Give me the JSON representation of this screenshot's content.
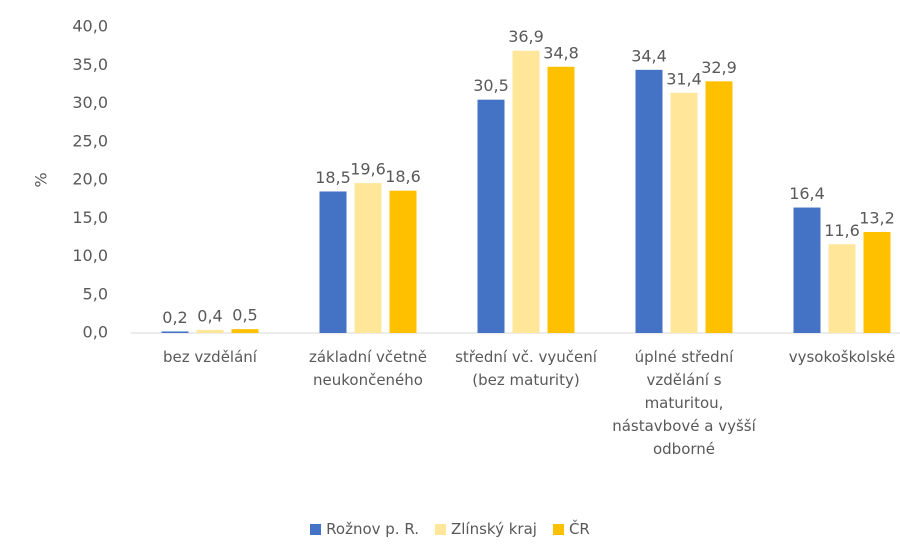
{
  "chart_data": {
    "type": "bar",
    "y_label": "%",
    "categories": [
      "bez vzdělání",
      "základní včetně neukončeného",
      "střední vč. vyučení (bez maturity)",
      "úplné střední vzdělání s maturitou, nástavbové a vyšší odborné",
      "vysokoškolské"
    ],
    "series": [
      {
        "name": "Rožnov p. R.",
        "color": "#4472c4",
        "values": [
          0.2,
          18.5,
          30.5,
          34.4,
          16.4
        ],
        "value_labels": [
          "0,2",
          "18,5",
          "30,5",
          "34,4",
          "16,4"
        ]
      },
      {
        "name": "Zlínský kraj",
        "color": "#ffe699",
        "values": [
          0.4,
          19.6,
          36.9,
          31.4,
          11.6
        ],
        "value_labels": [
          "0,4",
          "19,6",
          "36,9",
          "31,4",
          "11,6"
        ]
      },
      {
        "name": "ČR",
        "color": "#ffc000",
        "values": [
          0.5,
          18.6,
          34.8,
          32.9,
          13.2
        ],
        "value_labels": [
          "0,5",
          "18,6",
          "34,8",
          "32,9",
          "13,2"
        ]
      }
    ],
    "ylim": [
      0,
      40
    ],
    "yticks": [
      {
        "value": 0,
        "label": "0,0"
      },
      {
        "value": 5,
        "label": "5,0"
      },
      {
        "value": 10,
        "label": "10,0"
      },
      {
        "value": 15,
        "label": "15,0"
      },
      {
        "value": 20,
        "label": "20,0"
      },
      {
        "value": 25,
        "label": "25,0"
      },
      {
        "value": 30,
        "label": "30,0"
      },
      {
        "value": 35,
        "label": "35,0"
      },
      {
        "value": 40,
        "label": "40,0"
      }
    ],
    "grid": false,
    "legend": "bottom"
  }
}
